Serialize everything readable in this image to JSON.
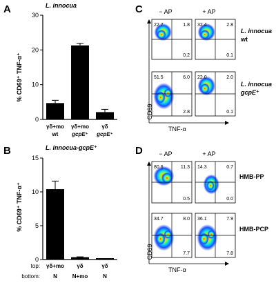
{
  "panels": {
    "A": {
      "letter": "A",
      "title": "L. innocua",
      "ylabel": "% CD69⁺ TNF-α⁺",
      "yticks": [
        "0",
        "10",
        "20",
        "30"
      ],
      "bars": [
        {
          "top": "γδ+mo",
          "bottom": "wt"
        },
        {
          "top": "γδ+mo",
          "bottom": "gcpE⁺"
        },
        {
          "top": "γδ",
          "bottom": "gcpE⁺"
        }
      ]
    },
    "B": {
      "letter": "B",
      "title": "L. innocua-gcpE⁺",
      "ylabel": "% CD69⁺ TNF-α⁺",
      "yticks": [
        "0",
        "5",
        "10",
        "15"
      ],
      "row_top_label": "top:",
      "row_bottom_label": "bottom:",
      "bars": [
        {
          "top": "γδ+mo",
          "bottom": "N"
        },
        {
          "top": "γδ",
          "bottom": "N+mo"
        },
        {
          "top": "γδ",
          "bottom": "N"
        }
      ]
    },
    "C": {
      "letter": "C",
      "col_labels": [
        "− AP",
        "+ AP"
      ],
      "row_labels": [
        [
          "L. innocua",
          "wt"
        ],
        [
          "L. innocua",
          "gcpE⁺"
        ]
      ],
      "xlabel": "TNF-α",
      "ylabel": "CD69",
      "quadrants": [
        [
          "22.7",
          "1.8",
          "0.2"
        ],
        [
          "32.4",
          "2.8",
          "0.1"
        ],
        [
          "51.5",
          "6.0",
          "2.8"
        ],
        [
          "22.0",
          "2.0",
          "0.1"
        ]
      ]
    },
    "D": {
      "letter": "D",
      "col_labels": [
        "− AP",
        "+ AP"
      ],
      "row_labels": [
        "HMB-PP",
        "HMB-PCP"
      ],
      "xlabel": "TNF-α",
      "ylabel": "CD69",
      "quadrants": [
        [
          "80.6",
          "11.3",
          "0.5"
        ],
        [
          "14.3",
          "0.7",
          "0.0"
        ],
        [
          "34.7",
          "8.0",
          "7.7"
        ],
        [
          "36.1",
          "7.9",
          "7.8"
        ]
      ]
    }
  },
  "chart_data": [
    {
      "type": "bar",
      "title": "L. innocua",
      "ylabel": "% CD69⁺ TNF-α⁺",
      "ylim": [
        0,
        30
      ],
      "categories": [
        "γδ+mo wt",
        "γδ+mo gcpE⁺",
        "γδ gcpE⁺"
      ],
      "values": [
        4.7,
        21.3,
        2.1
      ],
      "errors": [
        0.8,
        0.6,
        0.8
      ],
      "grid": false,
      "bar_color": "#000000"
    },
    {
      "type": "bar",
      "title": "L. innocua-gcpE⁺",
      "ylabel": "% CD69⁺ TNF-α⁺",
      "ylim": [
        0,
        15
      ],
      "categories": [
        "γδ+mo / N",
        "γδ / N+mo",
        "γδ / N"
      ],
      "values": [
        10.4,
        0.35,
        0.2
      ],
      "errors": [
        1.2,
        0.05,
        0.0
      ],
      "grid": false,
      "bar_color": "#000000"
    }
  ]
}
